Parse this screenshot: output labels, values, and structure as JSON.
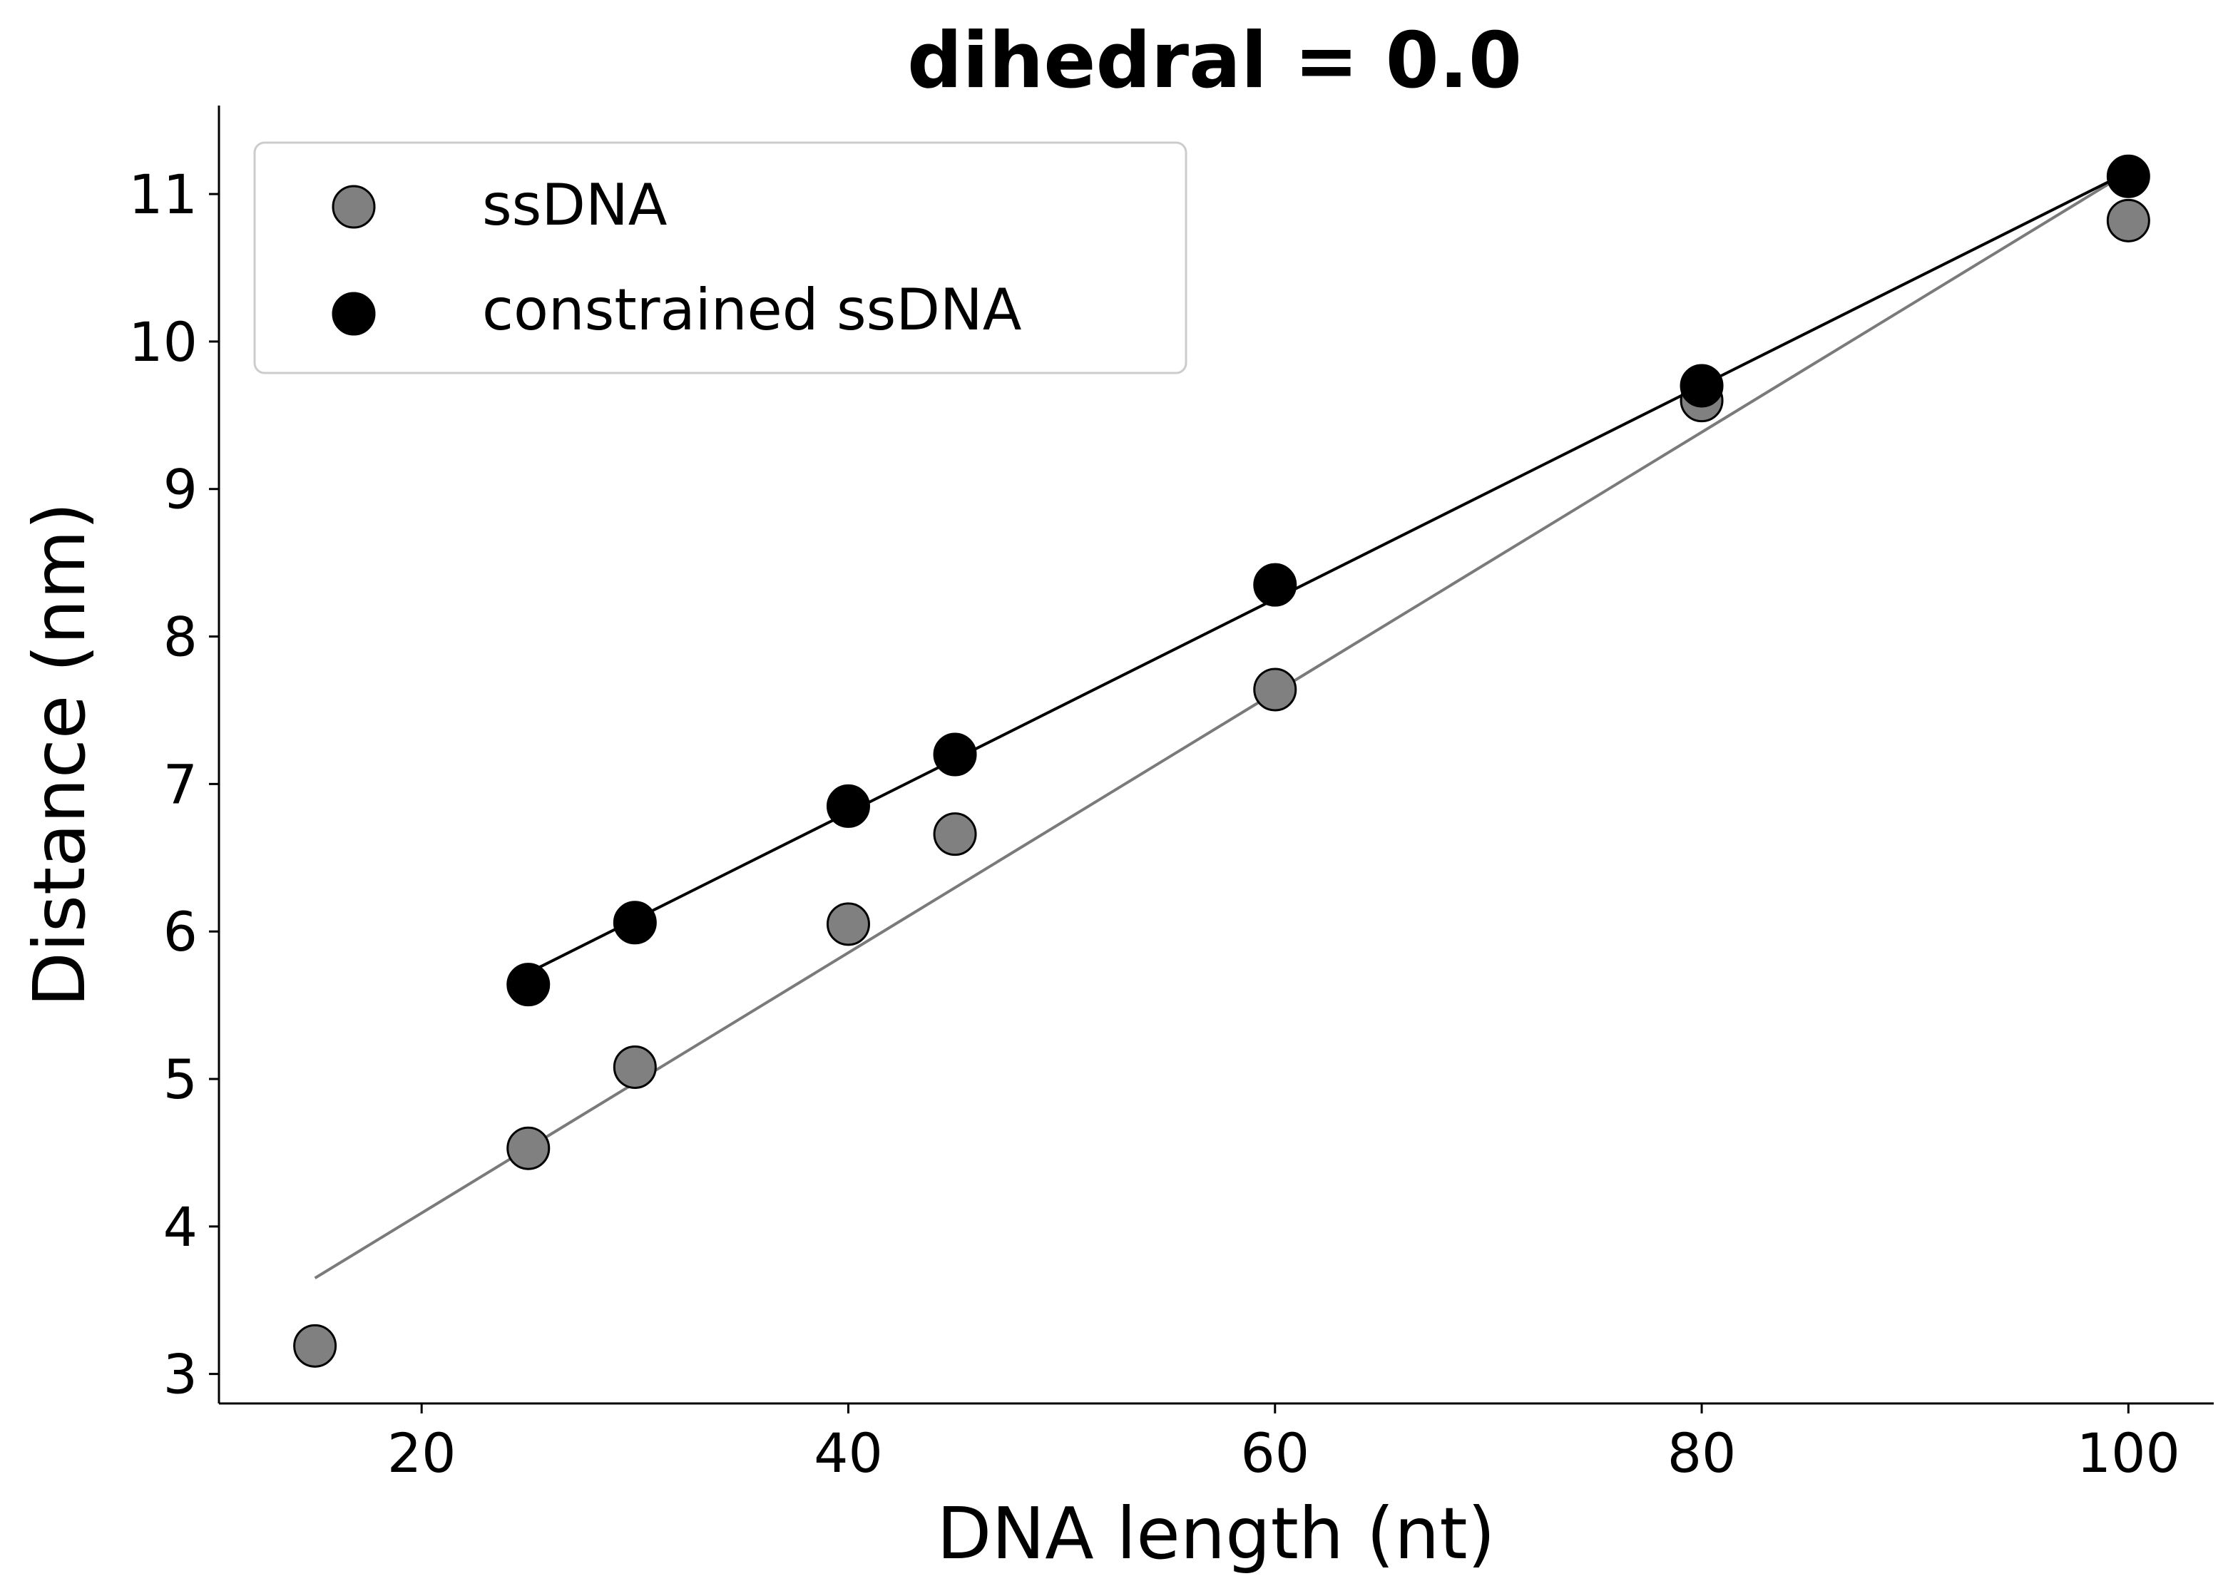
{
  "chart_data": {
    "type": "scatter",
    "title": "dihedral = 0.0",
    "xlabel": "DNA length (nt)",
    "ylabel": "Distance (nm)",
    "xlim": [
      10.5,
      104
    ],
    "ylim": [
      2.8,
      11.6
    ],
    "xticks": [
      20,
      40,
      60,
      80,
      100
    ],
    "yticks": [
      3,
      4,
      5,
      6,
      7,
      8,
      9,
      10,
      11
    ],
    "grid": false,
    "legend_position": "top-left",
    "series": [
      {
        "name": "ssDNA",
        "color": "#808080",
        "edge_color": "#000000",
        "fit_color": "#7a7a7a",
        "x": [
          15,
          25,
          30,
          40,
          45,
          60,
          80,
          100
        ],
        "y": [
          3.19,
          4.53,
          5.08,
          6.05,
          6.66,
          7.64,
          9.6,
          10.82
        ],
        "fit": {
          "x": [
            15,
            100
          ],
          "y": [
            3.65,
            11.15
          ]
        }
      },
      {
        "name": "constrained ssDNA",
        "color": "#000000",
        "edge_color": "#000000",
        "fit_color": "#000000",
        "x": [
          25,
          30,
          40,
          45,
          60,
          80,
          100
        ],
        "y": [
          5.64,
          6.06,
          6.85,
          7.2,
          8.35,
          9.7,
          11.12
        ],
        "fit": {
          "x": [
            25,
            100
          ],
          "y": [
            5.72,
            11.15
          ]
        }
      }
    ]
  }
}
